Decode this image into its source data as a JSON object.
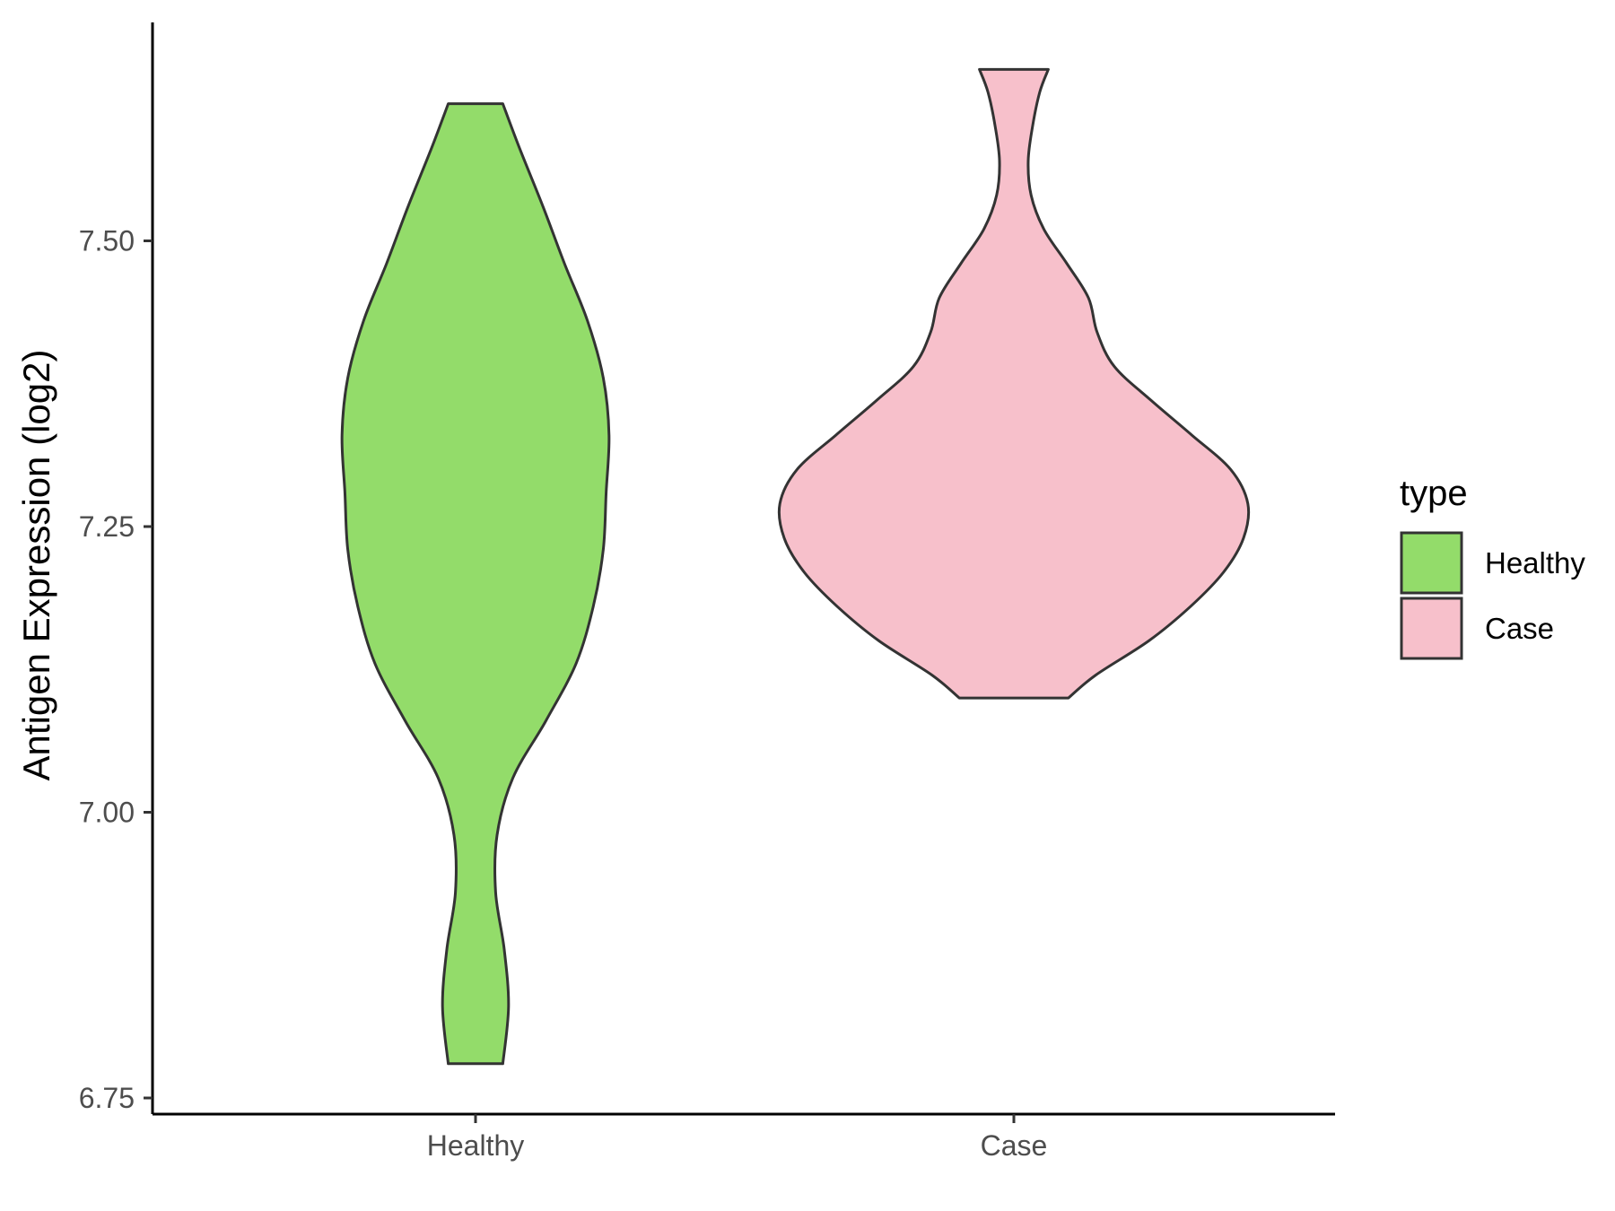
{
  "chart_data": {
    "type": "violin",
    "title": "",
    "xlabel": "",
    "ylabel": "Antigen Expression (log2)",
    "categories": [
      "Healthy",
      "Case"
    ],
    "ylim": [
      6.74,
      7.71
    ],
    "yticks": [
      6.75,
      7.0,
      7.25,
      7.5
    ],
    "ytick_labels": [
      "6.75",
      "7.00",
      "7.25",
      "7.50"
    ],
    "grid": false,
    "legend": {
      "title": "type",
      "position": "right",
      "entries": [
        {
          "label": "Healthy",
          "color": "#93DC6A"
        },
        {
          "label": "Case",
          "color": "#F7C0CB"
        }
      ]
    },
    "series": [
      {
        "name": "Healthy",
        "color": "#93DC6A",
        "min": 6.78,
        "max": 7.62,
        "density_profile": [
          [
            6.78,
            0.19
          ],
          [
            6.83,
            0.23
          ],
          [
            6.88,
            0.2
          ],
          [
            6.93,
            0.14
          ],
          [
            6.98,
            0.15
          ],
          [
            7.03,
            0.26
          ],
          [
            7.08,
            0.49
          ],
          [
            7.13,
            0.7
          ],
          [
            7.18,
            0.82
          ],
          [
            7.23,
            0.89
          ],
          [
            7.28,
            0.91
          ],
          [
            7.33,
            0.93
          ],
          [
            7.38,
            0.89
          ],
          [
            7.43,
            0.78
          ],
          [
            7.48,
            0.62
          ],
          [
            7.53,
            0.47
          ],
          [
            7.58,
            0.31
          ],
          [
            7.62,
            0.19
          ]
        ]
      },
      {
        "name": "Case",
        "color": "#F7C0CB",
        "min": 7.1,
        "max": 7.65,
        "density_profile": [
          [
            7.1,
            0.38
          ],
          [
            7.12,
            0.57
          ],
          [
            7.15,
            0.94
          ],
          [
            7.18,
            1.23
          ],
          [
            7.21,
            1.46
          ],
          [
            7.24,
            1.6
          ],
          [
            7.27,
            1.63
          ],
          [
            7.3,
            1.51
          ],
          [
            7.33,
            1.24
          ],
          [
            7.36,
            0.96
          ],
          [
            7.39,
            0.7
          ],
          [
            7.42,
            0.58
          ],
          [
            7.45,
            0.52
          ],
          [
            7.48,
            0.37
          ],
          [
            7.51,
            0.21
          ],
          [
            7.54,
            0.12
          ],
          [
            7.57,
            0.1
          ],
          [
            7.6,
            0.13
          ],
          [
            7.63,
            0.18
          ],
          [
            7.65,
            0.24
          ]
        ]
      }
    ]
  }
}
